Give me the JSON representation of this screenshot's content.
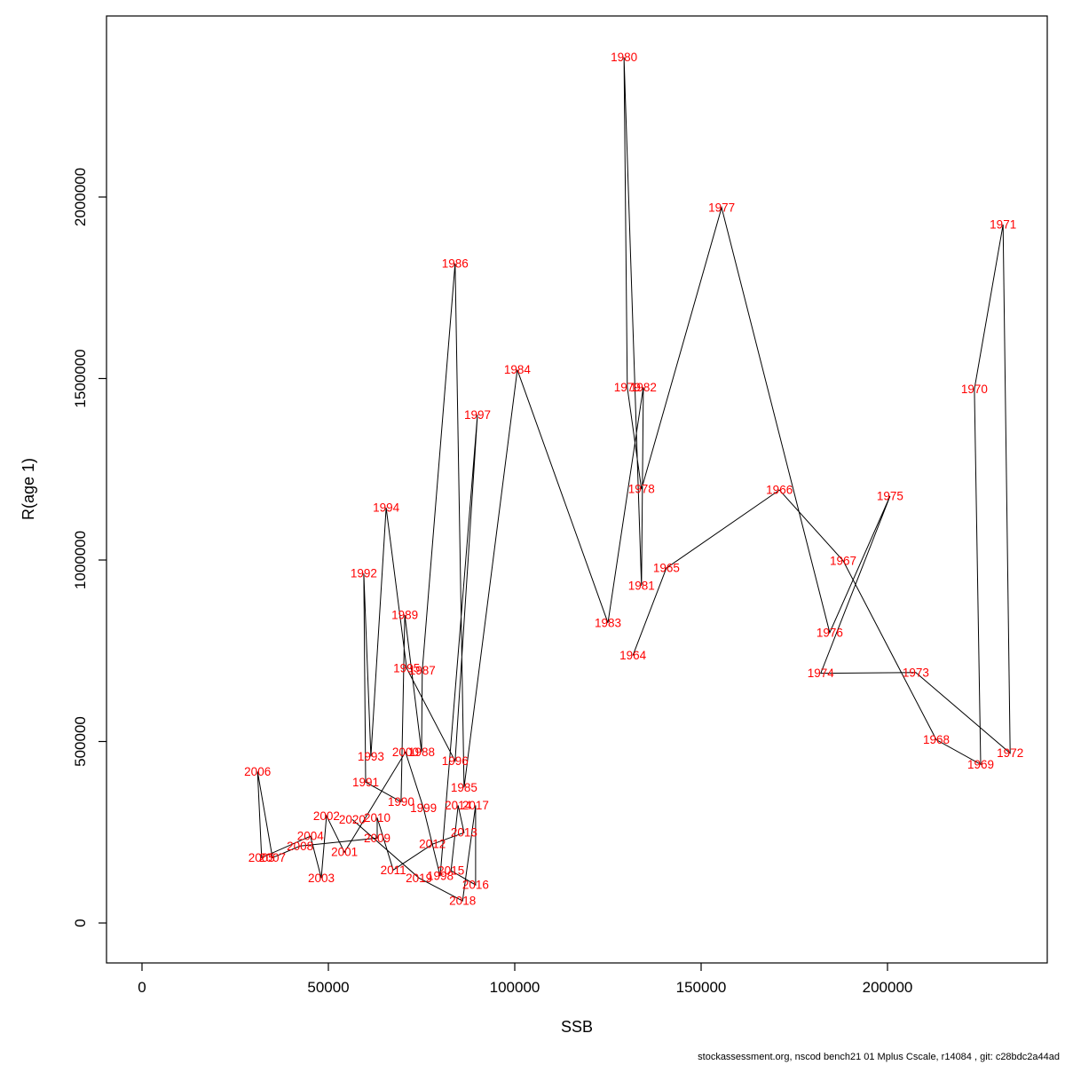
{
  "chart_data": {
    "type": "scatter",
    "title": "",
    "xlabel": "SSB",
    "ylabel": "R(age 1)",
    "x_ticks": [
      0,
      50000,
      100000,
      150000,
      200000
    ],
    "x_tick_labels": [
      "0",
      "50000",
      "100000",
      "150000",
      "200000"
    ],
    "y_ticks": [
      0,
      500000,
      1000000,
      1500000,
      2000000
    ],
    "y_tick_labels": [
      "0",
      "500000",
      "1000000",
      "1500000",
      "2000000"
    ],
    "xlim": [
      -9500,
      243000
    ],
    "ylim": [
      -110000,
      2500000
    ],
    "grid": false,
    "legend": "none",
    "line_color": "#000000",
    "label_color": "#ff0000",
    "series": [
      {
        "name": "recruitment-vs-ssb-by-year",
        "points": [
          {
            "year": 1964,
            "ssb": 131700,
            "r": 737000
          },
          {
            "year": 1965,
            "ssb": 140700,
            "r": 978000
          },
          {
            "year": 1966,
            "ssb": 171000,
            "r": 1193000
          },
          {
            "year": 1967,
            "ssb": 188100,
            "r": 998000
          },
          {
            "year": 1968,
            "ssb": 213100,
            "r": 505000
          },
          {
            "year": 1969,
            "ssb": 225000,
            "r": 437000
          },
          {
            "year": 1970,
            "ssb": 223300,
            "r": 1471000
          },
          {
            "year": 1971,
            "ssb": 231000,
            "r": 1924000
          },
          {
            "year": 1972,
            "ssb": 232900,
            "r": 468000
          },
          {
            "year": 1973,
            "ssb": 207600,
            "r": 690000
          },
          {
            "year": 1974,
            "ssb": 182100,
            "r": 688000
          },
          {
            "year": 1975,
            "ssb": 200700,
            "r": 1176000
          },
          {
            "year": 1976,
            "ssb": 184500,
            "r": 800000
          },
          {
            "year": 1977,
            "ssb": 155500,
            "r": 1971000
          },
          {
            "year": 1978,
            "ssb": 134000,
            "r": 1195000
          },
          {
            "year": 1979,
            "ssb": 130200,
            "r": 1476000
          },
          {
            "year": 1980,
            "ssb": 129300,
            "r": 2385000
          },
          {
            "year": 1981,
            "ssb": 134000,
            "r": 929000
          },
          {
            "year": 1982,
            "ssb": 134500,
            "r": 1476000
          },
          {
            "year": 1983,
            "ssb": 125000,
            "r": 827000
          },
          {
            "year": 1984,
            "ssb": 100700,
            "r": 1524000
          },
          {
            "year": 1985,
            "ssb": 86400,
            "r": 373000
          },
          {
            "year": 1986,
            "ssb": 84000,
            "r": 1817000
          },
          {
            "year": 1987,
            "ssb": 75200,
            "r": 695000
          },
          {
            "year": 1988,
            "ssb": 75000,
            "r": 471000
          },
          {
            "year": 1989,
            "ssb": 70500,
            "r": 849000
          },
          {
            "year": 1990,
            "ssb": 69500,
            "r": 334000
          },
          {
            "year": 1991,
            "ssb": 60000,
            "r": 388000
          },
          {
            "year": 1992,
            "ssb": 59500,
            "r": 963000
          },
          {
            "year": 1993,
            "ssb": 61400,
            "r": 459000
          },
          {
            "year": 1994,
            "ssb": 65500,
            "r": 1144000
          },
          {
            "year": 1995,
            "ssb": 71000,
            "r": 702000
          },
          {
            "year": 1996,
            "ssb": 84000,
            "r": 446000
          },
          {
            "year": 1997,
            "ssb": 90000,
            "r": 1400000
          },
          {
            "year": 1998,
            "ssb": 80000,
            "r": 129000
          },
          {
            "year": 1999,
            "ssb": 75500,
            "r": 317000
          },
          {
            "year": 2000,
            "ssb": 70700,
            "r": 471000
          },
          {
            "year": 2001,
            "ssb": 54300,
            "r": 195000
          },
          {
            "year": 2002,
            "ssb": 49500,
            "r": 295000
          },
          {
            "year": 2003,
            "ssb": 48100,
            "r": 124000
          },
          {
            "year": 2004,
            "ssb": 45200,
            "r": 239000
          },
          {
            "year": 2005,
            "ssb": 32100,
            "r": 180000
          },
          {
            "year": 2006,
            "ssb": 31000,
            "r": 417000
          },
          {
            "year": 2007,
            "ssb": 35000,
            "r": 180000
          },
          {
            "year": 2008,
            "ssb": 42400,
            "r": 212000
          },
          {
            "year": 2009,
            "ssb": 63100,
            "r": 234000
          },
          {
            "year": 2010,
            "ssb": 63100,
            "r": 290000
          },
          {
            "year": 2011,
            "ssb": 67400,
            "r": 146000
          },
          {
            "year": 2012,
            "ssb": 77900,
            "r": 217000
          },
          {
            "year": 2013,
            "ssb": 86400,
            "r": 249000
          },
          {
            "year": 2014,
            "ssb": 84800,
            "r": 324000
          },
          {
            "year": 2015,
            "ssb": 82900,
            "r": 144000
          },
          {
            "year": 2016,
            "ssb": 89500,
            "r": 105000
          },
          {
            "year": 2017,
            "ssb": 89500,
            "r": 324000
          },
          {
            "year": 2018,
            "ssb": 86000,
            "r": 61000
          },
          {
            "year": 2019,
            "ssb": 74300,
            "r": 124000
          },
          {
            "year": 2020,
            "ssb": 56400,
            "r": 285000
          }
        ]
      }
    ]
  },
  "footer": {
    "text": "stockassessment.org, nscod bench21 01 Mplus Cscale, r14084 , git: c28bdc2a44ad"
  }
}
